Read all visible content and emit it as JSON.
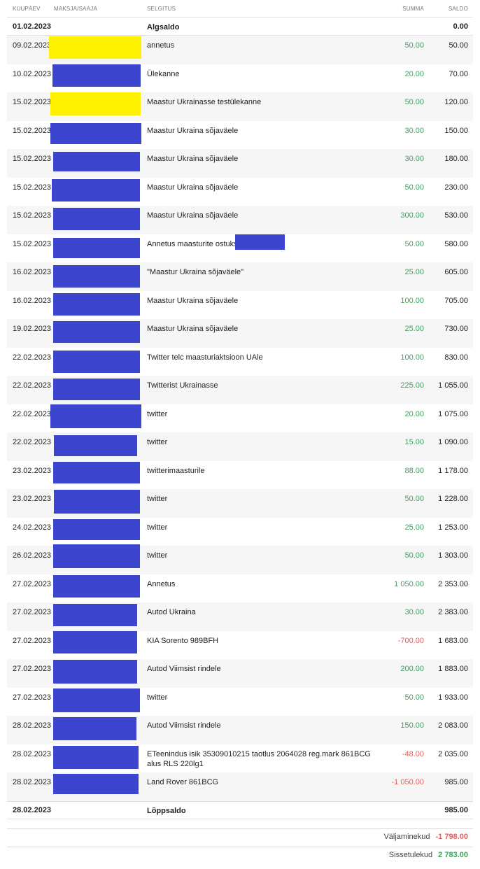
{
  "columns": {
    "date": "KUUPÄEV",
    "party": "MAKSJA/SAAJA",
    "desc": "SELGITUS",
    "amount": "SUMMA",
    "balance": "SALDO"
  },
  "opening": {
    "date": "01.02.2023",
    "label": "Algsaldo",
    "balance": "0.00"
  },
  "rows": [
    {
      "date": "09.02.2023",
      "desc": "annetus",
      "amount": "50.00",
      "balance": "50.00",
      "sign": "pos",
      "redact": "yellow"
    },
    {
      "date": "10.02.2023",
      "desc": "Ülekanne",
      "amount": "20.00",
      "balance": "70.00",
      "sign": "pos",
      "redact": "blue"
    },
    {
      "date": "15.02.2023",
      "desc": "Maastur Ukrainasse testülekanne",
      "amount": "50.00",
      "balance": "120.00",
      "sign": "pos",
      "redact": "yellow"
    },
    {
      "date": "15.02.2023",
      "desc": "Maastur Ukraina sõjaväele",
      "amount": "30.00",
      "balance": "150.00",
      "sign": "pos",
      "redact": "blue"
    },
    {
      "date": "15.02.2023",
      "desc": "Maastur Ukraina sõjaväele",
      "amount": "30.00",
      "balance": "180.00",
      "sign": "pos",
      "redact": "blue"
    },
    {
      "date": "15.02.2023",
      "desc": "Maastur Ukraina sõjaväele",
      "amount": "50.00",
      "balance": "230.00",
      "sign": "pos",
      "redact": "blue"
    },
    {
      "date": "15.02.2023",
      "desc": "Maastur Ukraina sõjaväele",
      "amount": "300.00",
      "balance": "530.00",
      "sign": "pos",
      "redact": "blue"
    },
    {
      "date": "15.02.2023",
      "desc": "Annetus maasturite ostuks",
      "amount": "50.00",
      "balance": "580.00",
      "sign": "pos",
      "redact": "blue"
    },
    {
      "date": "16.02.2023",
      "desc": "\"Maastur Ukraina sõjaväele\"",
      "amount": "25.00",
      "balance": "605.00",
      "sign": "pos",
      "redact": "blue"
    },
    {
      "date": "16.02.2023",
      "desc": "Maastur Ukraina sõjaväele",
      "amount": "100.00",
      "balance": "705.00",
      "sign": "pos",
      "redact": "blue"
    },
    {
      "date": "19.02.2023",
      "desc": "Maastur Ukraina sõjaväele",
      "amount": "25.00",
      "balance": "730.00",
      "sign": "pos",
      "redact": "blue"
    },
    {
      "date": "22.02.2023",
      "desc": "Twitter telc maasturiaktsioon UAle",
      "amount": "100.00",
      "balance": "830.00",
      "sign": "pos",
      "redact": "blue"
    },
    {
      "date": "22.02.2023",
      "desc": "Twitterist Ukrainasse",
      "amount": "225.00",
      "balance": "1 055.00",
      "sign": "pos",
      "redact": "blue"
    },
    {
      "date": "22.02.2023",
      "desc": "twitter",
      "amount": "20.00",
      "balance": "1 075.00",
      "sign": "pos",
      "redact": "blue"
    },
    {
      "date": "22.02.2023",
      "desc": "twitter",
      "amount": "15.00",
      "balance": "1 090.00",
      "sign": "pos",
      "redact": "blue"
    },
    {
      "date": "23.02.2023",
      "desc": "twitterimaasturile",
      "amount": "88.00",
      "balance": "1 178.00",
      "sign": "pos",
      "redact": "blue"
    },
    {
      "date": "23.02.2023",
      "desc": "twitter",
      "amount": "50.00",
      "balance": "1 228.00",
      "sign": "pos",
      "redact": "blue"
    },
    {
      "date": "24.02.2023",
      "desc": "twitter",
      "amount": "25.00",
      "balance": "1 253.00",
      "sign": "pos",
      "redact": "blue"
    },
    {
      "date": "26.02.2023",
      "desc": "twitter",
      "amount": "50.00",
      "balance": "1 303.00",
      "sign": "pos",
      "redact": "blue"
    },
    {
      "date": "27.02.2023",
      "desc": "Annetus",
      "amount": "1 050.00",
      "balance": "2 353.00",
      "sign": "pos",
      "redact": "blue"
    },
    {
      "date": "27.02.2023",
      "desc": "Autod Ukraina",
      "amount": "30.00",
      "balance": "2 383.00",
      "sign": "pos",
      "redact": "blue"
    },
    {
      "date": "27.02.2023",
      "desc": "KIA Sorento 989BFH",
      "amount": "-700.00",
      "balance": "1 683.00",
      "sign": "neg",
      "redact": "blue"
    },
    {
      "date": "27.02.2023",
      "desc": "Autod Viimsist rindele",
      "amount": "200.00",
      "balance": "1 883.00",
      "sign": "pos",
      "redact": "blue"
    },
    {
      "date": "27.02.2023",
      "desc": "twitter",
      "amount": "50.00",
      "balance": "1 933.00",
      "sign": "pos",
      "redact": "blue"
    },
    {
      "date": "28.02.2023",
      "desc": "Autod Viimsist rindele",
      "amount": "150.00",
      "balance": "2 083.00",
      "sign": "pos",
      "redact": "blue"
    },
    {
      "date": "28.02.2023",
      "desc": "ETeenindus isik 35309010215 taotlus 2064028 reg.mark 861BCG alus RLS 220lg1",
      "amount": "-48.00",
      "balance": "2 035.00",
      "sign": "neg",
      "redact": "blue"
    },
    {
      "date": "28.02.2023",
      "desc": "Land Rover 861BCG",
      "amount": "-1 050.00",
      "balance": "985.00",
      "sign": "neg",
      "redact": "blue"
    }
  ],
  "closing": {
    "date": "28.02.2023",
    "label": "Lõppsaldo",
    "balance": "985.00"
  },
  "totals": {
    "out_label": "Väljaminekud",
    "out_value": "-1 798.00",
    "in_label": "Sissetulekud",
    "in_value": "2 783.00"
  },
  "colors": {
    "redact_blue": "#3b45cd",
    "redact_yellow": "#fff200",
    "positive": "#3aa55d",
    "negative": "#e06060"
  }
}
